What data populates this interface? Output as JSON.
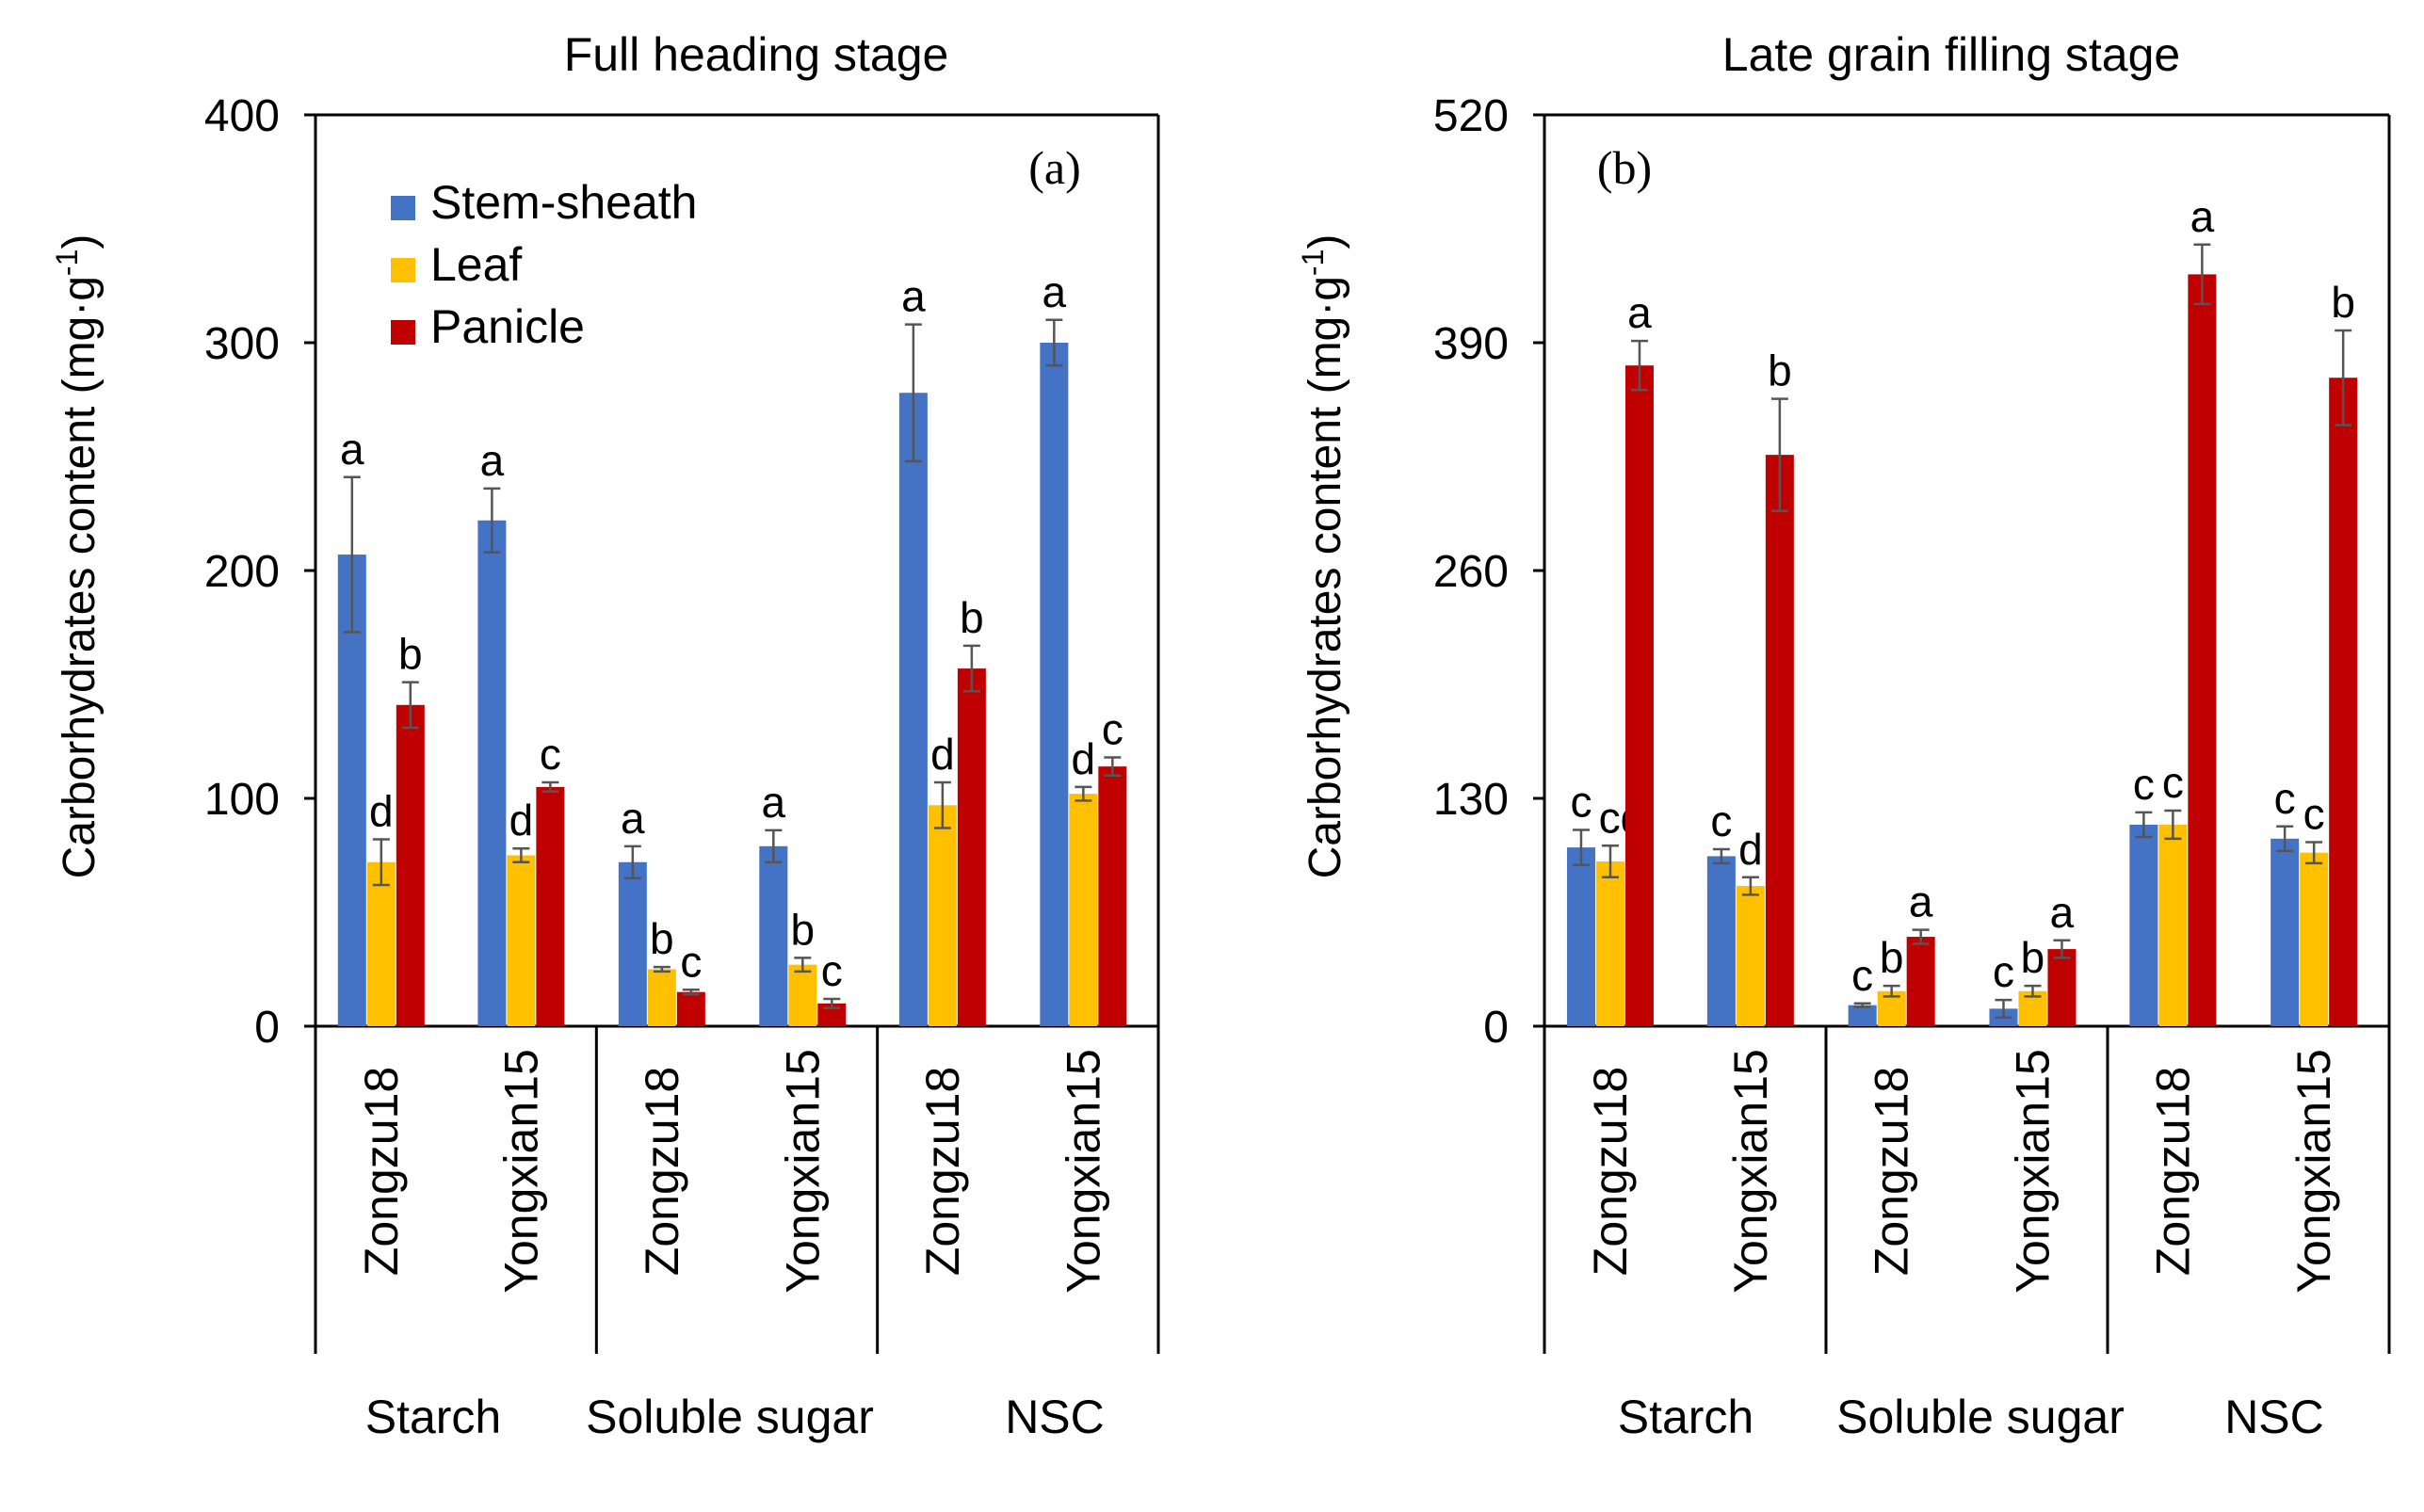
{
  "chart_data": [
    {
      "type": "bar",
      "panel_label": "(a)",
      "title": "Full heading stage",
      "ylabel": "Carborhydrates content (mg·g",
      "ylabel_unit_sup": "-1",
      "ylabel_close": ")",
      "ylim": [
        0,
        400
      ],
      "yticks": [
        0,
        100,
        200,
        300,
        400
      ],
      "groups": [
        "Starch",
        "Soluble sugar",
        "NSC"
      ],
      "cultivars": [
        "Zongzu18",
        "Yongxian15"
      ],
      "legend": {
        "placement": "top-left",
        "entries": [
          "Stem-sheath",
          "Leaf",
          "Panicle"
        ]
      },
      "series": [
        {
          "name": "Stem-sheath",
          "color": "#4472C4",
          "values": [
            207,
            222,
            72,
            79,
            278,
            300
          ],
          "errors": [
            34,
            14,
            7,
            7,
            30,
            10
          ],
          "letters": [
            "a",
            "a",
            "a",
            "a",
            "a",
            "a"
          ]
        },
        {
          "name": "Leaf",
          "color": "#FFC000",
          "values": [
            72,
            75,
            25,
            27,
            97,
            102
          ],
          "errors": [
            10,
            3,
            1,
            3,
            10,
            3
          ],
          "letters": [
            "d",
            "d",
            "b",
            "b",
            "d",
            "d"
          ]
        },
        {
          "name": "Panicle",
          "color": "#C00000",
          "values": [
            141,
            105,
            15,
            10,
            157,
            114
          ],
          "errors": [
            10,
            2,
            1,
            2,
            10,
            4
          ],
          "letters": [
            "b",
            "c",
            "c",
            "c",
            "b",
            "c"
          ]
        }
      ]
    },
    {
      "type": "bar",
      "panel_label": "(b)",
      "title": "Late grain filling stage",
      "ylabel": "Carborhydrates content (mg·g",
      "ylabel_unit_sup": "-1",
      "ylabel_close": ")",
      "ylim": [
        0,
        520
      ],
      "yticks": [
        0,
        130,
        260,
        390,
        520
      ],
      "groups": [
        "Starch",
        "Soluble sugar",
        "NSC"
      ],
      "cultivars": [
        "Zongzu18",
        "Yongxian15"
      ],
      "series": [
        {
          "name": "Stem-sheath",
          "color": "#4472C4",
          "values": [
            102,
            97,
            12,
            10,
            115,
            107
          ],
          "errors": [
            10,
            4,
            1,
            5,
            7,
            7
          ],
          "letters": [
            "c",
            "c",
            "c",
            "c",
            "c",
            "c"
          ]
        },
        {
          "name": "Leaf",
          "color": "#FFC000",
          "values": [
            94,
            80,
            20,
            20,
            115,
            99
          ],
          "errors": [
            9,
            5,
            3,
            3,
            8,
            6
          ],
          "letters": [
            "cd",
            "d",
            "b",
            "b",
            "c",
            "c"
          ]
        },
        {
          "name": "Panicle",
          "color": "#C00000",
          "values": [
            377,
            326,
            51,
            44,
            429,
            370
          ],
          "errors": [
            14,
            32,
            4,
            5,
            17,
            27
          ],
          "letters": [
            "a",
            "b",
            "a",
            "a",
            "a",
            "b"
          ]
        }
      ]
    }
  ]
}
